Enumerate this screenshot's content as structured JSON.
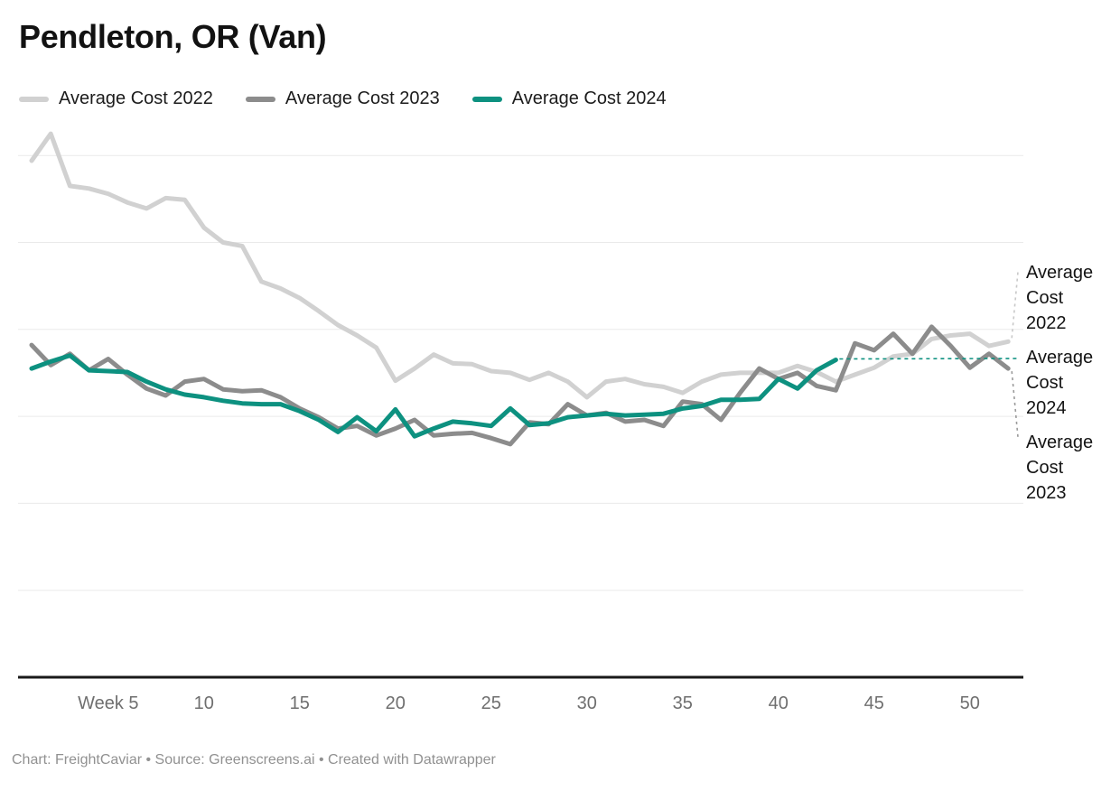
{
  "title": "Pendleton, OR (Van)",
  "legend": [
    {
      "label": "Average Cost 2022"
    },
    {
      "label": "Average Cost 2023"
    },
    {
      "label": "Average Cost 2024"
    }
  ],
  "right_labels": [
    {
      "l1": "Average",
      "l2": "Cost",
      "l3": "2022"
    },
    {
      "l1": "Average",
      "l2": "Cost",
      "l3": "2024"
    },
    {
      "l1": "Average",
      "l2": "Cost",
      "l3": "2023"
    }
  ],
  "footer": {
    "text": "Chart: FreightCaviar • Source: Greenscreens.ai • Created with Datawrapper"
  },
  "chart_data": {
    "type": "line",
    "title": "Pendleton, OR (Van)",
    "xlabel": "Week",
    "ylabel": "",
    "x_range": [
      1,
      52
    ],
    "x_ticks": [
      {
        "week": 5,
        "label": "Week 5"
      },
      {
        "week": 10,
        "label": "10"
      },
      {
        "week": 15,
        "label": "15"
      },
      {
        "week": 20,
        "label": "20"
      },
      {
        "week": 25,
        "label": "25"
      },
      {
        "week": 30,
        "label": "30"
      },
      {
        "week": 35,
        "label": "35"
      },
      {
        "week": 40,
        "label": "40"
      },
      {
        "week": 45,
        "label": "45"
      },
      {
        "week": 50,
        "label": "50"
      }
    ],
    "y_axis_note": "no y-axis tick labels shown in chart; values are in gridline units (0 = baseline, 1 per gridline, 6 gridlines)",
    "y_gridlines": 6,
    "ylim": [
      0,
      6.5
    ],
    "legend_position": "top",
    "grid": true,
    "colors": {
      "grid": "#eaeaea",
      "axis": "#1a1a1a",
      "tick_text": "#6f6f6f",
      "footer_text": "#919191"
    },
    "series": [
      {
        "name": "Average Cost 2022",
        "color": "#d1d1d1",
        "start_week": 1,
        "values": [
          5.94,
          6.25,
          5.65,
          5.62,
          5.56,
          5.46,
          5.39,
          5.51,
          5.49,
          5.17,
          5.0,
          4.96,
          4.55,
          4.47,
          4.36,
          4.21,
          4.05,
          3.93,
          3.79,
          3.41,
          3.55,
          3.71,
          3.61,
          3.6,
          3.52,
          3.5,
          3.42,
          3.5,
          3.4,
          3.22,
          3.4,
          3.43,
          3.37,
          3.34,
          3.27,
          3.4,
          3.48,
          3.5,
          3.5,
          3.5,
          3.58,
          3.51,
          3.4,
          3.48,
          3.56,
          3.69,
          3.72,
          3.89,
          3.93,
          3.95,
          3.81,
          3.86
        ]
      },
      {
        "name": "Average Cost 2023",
        "color": "#8c8c8c",
        "start_week": 1,
        "values": [
          3.82,
          3.59,
          3.72,
          3.53,
          3.66,
          3.48,
          3.32,
          3.24,
          3.4,
          3.43,
          3.31,
          3.29,
          3.3,
          3.22,
          3.09,
          2.99,
          2.86,
          2.89,
          2.78,
          2.86,
          2.96,
          2.78,
          2.8,
          2.81,
          2.75,
          2.68,
          2.93,
          2.91,
          3.14,
          3.01,
          3.04,
          2.94,
          2.96,
          2.89,
          3.17,
          3.14,
          2.96,
          3.27,
          3.55,
          3.43,
          3.5,
          3.35,
          3.3,
          3.84,
          3.76,
          3.95,
          3.72,
          4.03,
          3.81,
          3.56,
          3.72,
          3.55
        ]
      },
      {
        "name": "Average Cost 2024",
        "color": "#0d9180",
        "start_week": 1,
        "values": [
          3.55,
          3.63,
          3.7,
          3.53,
          3.52,
          3.51,
          3.4,
          3.31,
          3.25,
          3.22,
          3.18,
          3.15,
          3.14,
          3.14,
          3.06,
          2.96,
          2.82,
          2.99,
          2.83,
          3.08,
          2.77,
          2.86,
          2.94,
          2.92,
          2.89,
          3.09,
          2.9,
          2.92,
          2.99,
          3.01,
          3.03,
          3.01,
          3.02,
          3.03,
          3.09,
          3.12,
          3.19,
          3.19,
          3.2,
          3.43,
          3.32,
          3.53,
          3.65
        ]
      }
    ]
  }
}
